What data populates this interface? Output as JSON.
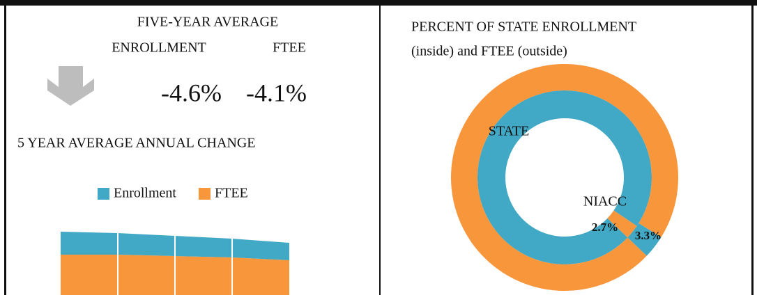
{
  "summary": {
    "title": "FIVE-YEAR AVERAGE",
    "columns": [
      "ENROLLMENT",
      "FTEE"
    ],
    "values": [
      "-4.6%",
      "-4.1%"
    ]
  },
  "chart_data": [
    {
      "type": "area",
      "stacked": true,
      "title": "5 YEAR AVERAGE ANNUAL CHANGE",
      "categories": [
        null,
        null,
        null,
        null,
        null
      ],
      "series": [
        {
          "name": "Enrollment",
          "color": "#41a8c5",
          "values": [
            33,
            31,
            29,
            27,
            25
          ]
        },
        {
          "name": "FTEE",
          "color": "#f7963b",
          "values": [
            58,
            58,
            56,
            54,
            50
          ]
        }
      ],
      "ylim": [
        0,
        100
      ],
      "legend": "top"
    },
    {
      "type": "pie",
      "donut": true,
      "title": "PERCENT OF STATE ENROLLMENT",
      "subtitle": "(inside) and FTEE (outside)",
      "categories": [
        "STATE",
        "NIACC"
      ],
      "series": [
        {
          "colors": [
            "#41a8c5",
            "#f7963b"
          ],
          "values": [
            97.3,
            2.7
          ],
          "value_labels": [
            null,
            "2.7%"
          ]
        },
        {
          "colors": [
            "#f7963b",
            "#41a8c5"
          ],
          "values": [
            96.7,
            3.3
          ],
          "value_labels": [
            null,
            "3.3%"
          ]
        }
      ]
    }
  ]
}
